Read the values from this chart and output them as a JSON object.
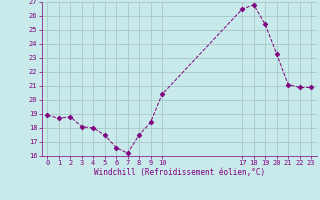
{
  "x": [
    0,
    1,
    2,
    3,
    4,
    5,
    6,
    7,
    8,
    9,
    10,
    17,
    18,
    19,
    20,
    21,
    22,
    23
  ],
  "y": [
    18.9,
    18.7,
    18.8,
    18.1,
    18.0,
    17.5,
    16.6,
    16.2,
    17.5,
    18.4,
    20.4,
    26.5,
    26.8,
    25.4,
    23.3,
    21.1,
    20.9,
    20.9
  ],
  "line_color": "#800080",
  "marker": "D",
  "marker_size": 2.5,
  "bg_color": "#c8eaea",
  "grid_color": "#a8c8c8",
  "xlabel": "Windchill (Refroidissement éolien,°C)",
  "xlabel_color": "#800080",
  "tick_color": "#800080",
  "ylim": [
    16,
    27
  ],
  "yticks": [
    16,
    17,
    18,
    19,
    20,
    21,
    22,
    23,
    24,
    25,
    26,
    27
  ],
  "xticks": [
    0,
    1,
    2,
    3,
    4,
    5,
    6,
    7,
    8,
    9,
    10,
    17,
    18,
    19,
    20,
    21,
    22,
    23
  ],
  "xlim": [
    -0.5,
    23.5
  ]
}
